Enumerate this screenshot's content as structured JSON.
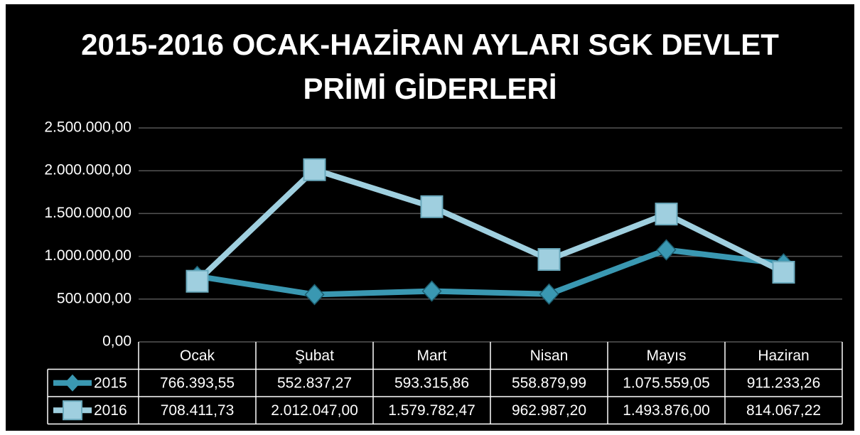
{
  "chart_data": {
    "type": "line",
    "title": "2015-2016 OCAK-HAZİRAN AYLARI SGK DEVLET PRİMİ GİDERLERİ",
    "categories": [
      "Ocak",
      "Şubat",
      "Mart",
      "Nisan",
      "Mayıs",
      "Haziran"
    ],
    "series": [
      {
        "name": "2015",
        "color": "#3a98b2",
        "marker": "diamond",
        "values": [
          766393.55,
          552837.27,
          593315.86,
          558879.99,
          1075559.05,
          911233.26
        ],
        "value_labels": [
          "766.393,55",
          "552.837,27",
          "593.315,86",
          "558.879,99",
          "1.075.559,05",
          "911.233,26"
        ]
      },
      {
        "name": "2016",
        "color": "#9fcfdf",
        "marker": "square",
        "values": [
          708411.73,
          2012047.0,
          1579782.47,
          962987.2,
          1493876.0,
          814067.22
        ],
        "value_labels": [
          "708.411,73",
          "2.012.047,00",
          "1.579.782,47",
          "962.987,20",
          "1.493.876,00",
          "814.067,22"
        ]
      }
    ],
    "ylim": [
      0,
      2500000
    ],
    "yticks": [
      {
        "value": 0,
        "label": "0,00"
      },
      {
        "value": 500000,
        "label": "500.000,00"
      },
      {
        "value": 1000000,
        "label": "1.000.000,00"
      },
      {
        "value": 1500000,
        "label": "1.500.000,00"
      },
      {
        "value": 2000000,
        "label": "2.000.000,00"
      },
      {
        "value": 2500000,
        "label": "2.500.000,00"
      }
    ],
    "grid": true
  }
}
